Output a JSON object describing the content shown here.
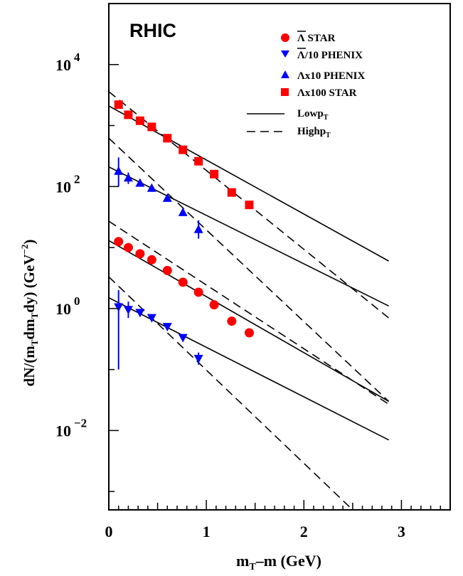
{
  "chart_data": {
    "type": "scatter",
    "title": "RHIC",
    "xlabel": {
      "main": "m",
      "sub": "T",
      "rest": "–m (GeV)"
    },
    "ylabel": {
      "p1": "dN/(m",
      "s1": "T",
      "p2": "dm",
      "s2": "T",
      "p3": "dy)  (GeV",
      "sup": "−2",
      "p4": ")"
    },
    "xlim": [
      0,
      3.5
    ],
    "ylim": [
      0.0005,
      100000
    ],
    "y_scale": "log",
    "x_ticks": [
      "0",
      "1",
      "2",
      "3"
    ],
    "y_ticks": [
      {
        "base": "10",
        "exp": "4"
      },
      {
        "base": "10",
        "exp": "2"
      },
      {
        "base": "10",
        "exp": "0"
      },
      {
        "base": "10",
        "exp": "-2"
      }
    ],
    "legend_position": "top-right",
    "legend": [
      {
        "label": "Λ STAR",
        "marker": "circle",
        "color": "#ff0000"
      },
      {
        "label": "Λ/10 PHENIX",
        "marker": "triangle-down",
        "color": "#0000ff"
      },
      {
        "label": "Λx10 PHENIX",
        "marker": "triangle-up",
        "color": "#0000ff"
      },
      {
        "label": "Λx100 STAR",
        "marker": "square",
        "color": "#ff0000"
      },
      {
        "label": "Low",
        "sub": "T",
        "pre": "p",
        "style": "solid"
      },
      {
        "label": "High",
        "sub": "T",
        "pre": "p",
        "style": "dashed"
      }
    ],
    "series": [
      {
        "name": "Λx100 STAR",
        "marker": "square",
        "color": "#ff0000",
        "x": [
          0.1,
          0.2,
          0.32,
          0.44,
          0.6,
          0.76,
          0.92,
          1.08,
          1.26,
          1.44
        ],
        "y": [
          2200,
          1500,
          1200,
          950,
          620,
          400,
          260,
          160,
          80,
          50
        ]
      },
      {
        "name": "Λx10 PHENIX",
        "marker": "triangle-up",
        "color": "#0000ff",
        "x": [
          0.1,
          0.2,
          0.32,
          0.44,
          0.6,
          0.76,
          0.92
        ],
        "y": [
          180,
          140,
          115,
          95,
          65,
          38,
          20
        ],
        "err": [
          [
            100,
            300
          ],
          [
            110,
            170
          ],
          [
            null,
            null
          ],
          [
            null,
            null
          ],
          [
            null,
            null
          ],
          [
            null,
            null
          ],
          [
            14,
            28
          ]
        ]
      },
      {
        "name": "Λ STAR",
        "marker": "circle",
        "color": "#ff0000",
        "x": [
          0.1,
          0.2,
          0.32,
          0.44,
          0.6,
          0.76,
          0.92,
          1.08,
          1.26,
          1.44
        ],
        "y": [
          12.5,
          10,
          7.9,
          6.3,
          4.2,
          2.7,
          1.85,
          1.15,
          0.62,
          0.4
        ]
      },
      {
        "name": "Λ/10 PHENIX",
        "marker": "triangle-down",
        "color": "#0000ff",
        "x": [
          0.1,
          0.2,
          0.32,
          0.44,
          0.6,
          0.76,
          0.92
        ],
        "y": [
          1.05,
          0.95,
          0.85,
          0.7,
          0.5,
          0.33,
          0.15
        ],
        "err": [
          [
            0.1,
            2.0
          ],
          [
            0.7,
            1.3
          ],
          [
            null,
            null
          ],
          [
            null,
            null
          ],
          [
            null,
            null
          ],
          [
            null,
            null
          ],
          [
            0.12,
            0.19
          ]
        ]
      }
    ],
    "fit_lines": [
      {
        "style": "solid",
        "x": [
          0,
          2.87
        ],
        "y": [
          2100,
          6
        ]
      },
      {
        "style": "dashed",
        "x": [
          0,
          2.87
        ],
        "y": [
          3600,
          0.7
        ]
      },
      {
        "style": "solid",
        "x": [
          0,
          2.87
        ],
        "y": [
          210,
          1.1
        ]
      },
      {
        "style": "dashed",
        "x": [
          0,
          2.87
        ],
        "y": [
          620,
          0.03
        ]
      },
      {
        "style": "solid",
        "x": [
          0,
          2.87
        ],
        "y": [
          13,
          0.03
        ]
      },
      {
        "style": "dashed",
        "x": [
          0,
          2.87
        ],
        "y": [
          27,
          0.027
        ]
      },
      {
        "style": "solid",
        "x": [
          0,
          2.87
        ],
        "y": [
          1.5,
          0.007
        ]
      },
      {
        "style": "dashed",
        "x": [
          0,
          2.5
        ],
        "y": [
          3.3,
          0.0005
        ]
      }
    ]
  }
}
